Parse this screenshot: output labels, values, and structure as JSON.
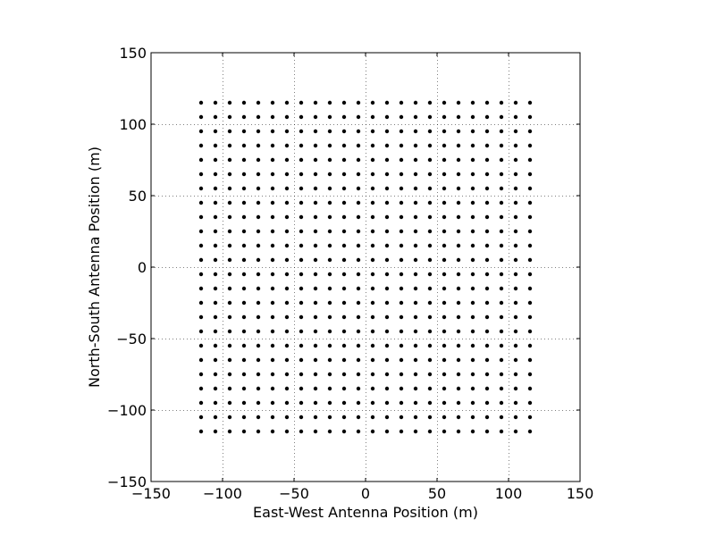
{
  "chart_data": {
    "type": "scatter",
    "title": "",
    "xlabel": "East-West Antenna Position (m)",
    "ylabel": "North-South Antenna Position (m)",
    "xlim": [
      -150,
      150
    ],
    "ylim": [
      -150,
      150
    ],
    "xticks": [
      -150,
      -100,
      -50,
      0,
      50,
      100,
      150
    ],
    "yticks": [
      -150,
      -100,
      -50,
      0,
      50,
      100,
      150
    ],
    "xtick_labels": [
      "−150",
      "−100",
      "−50",
      "0",
      "50",
      "100",
      "150"
    ],
    "ytick_labels": [
      "−150",
      "−100",
      "−50",
      "0",
      "50",
      "100",
      "150"
    ],
    "grid": true,
    "legend": "none",
    "marker_color": "#000000",
    "series": [
      {
        "x": [
          -115,
          -105,
          -95,
          -85,
          -75,
          -65,
          -55,
          -45,
          -35,
          -25,
          -15,
          -5,
          5,
          15,
          25,
          35,
          45,
          55,
          65,
          75,
          85,
          95,
          105,
          115
        ],
        "y": [
          -115,
          -105,
          -95,
          -85,
          -75,
          -65,
          -55,
          -45,
          -35,
          -25,
          -15,
          -5,
          5,
          15,
          25,
          35,
          45,
          55,
          65,
          75,
          85,
          95,
          105,
          115
        ],
        "layout": "grid"
      }
    ]
  }
}
